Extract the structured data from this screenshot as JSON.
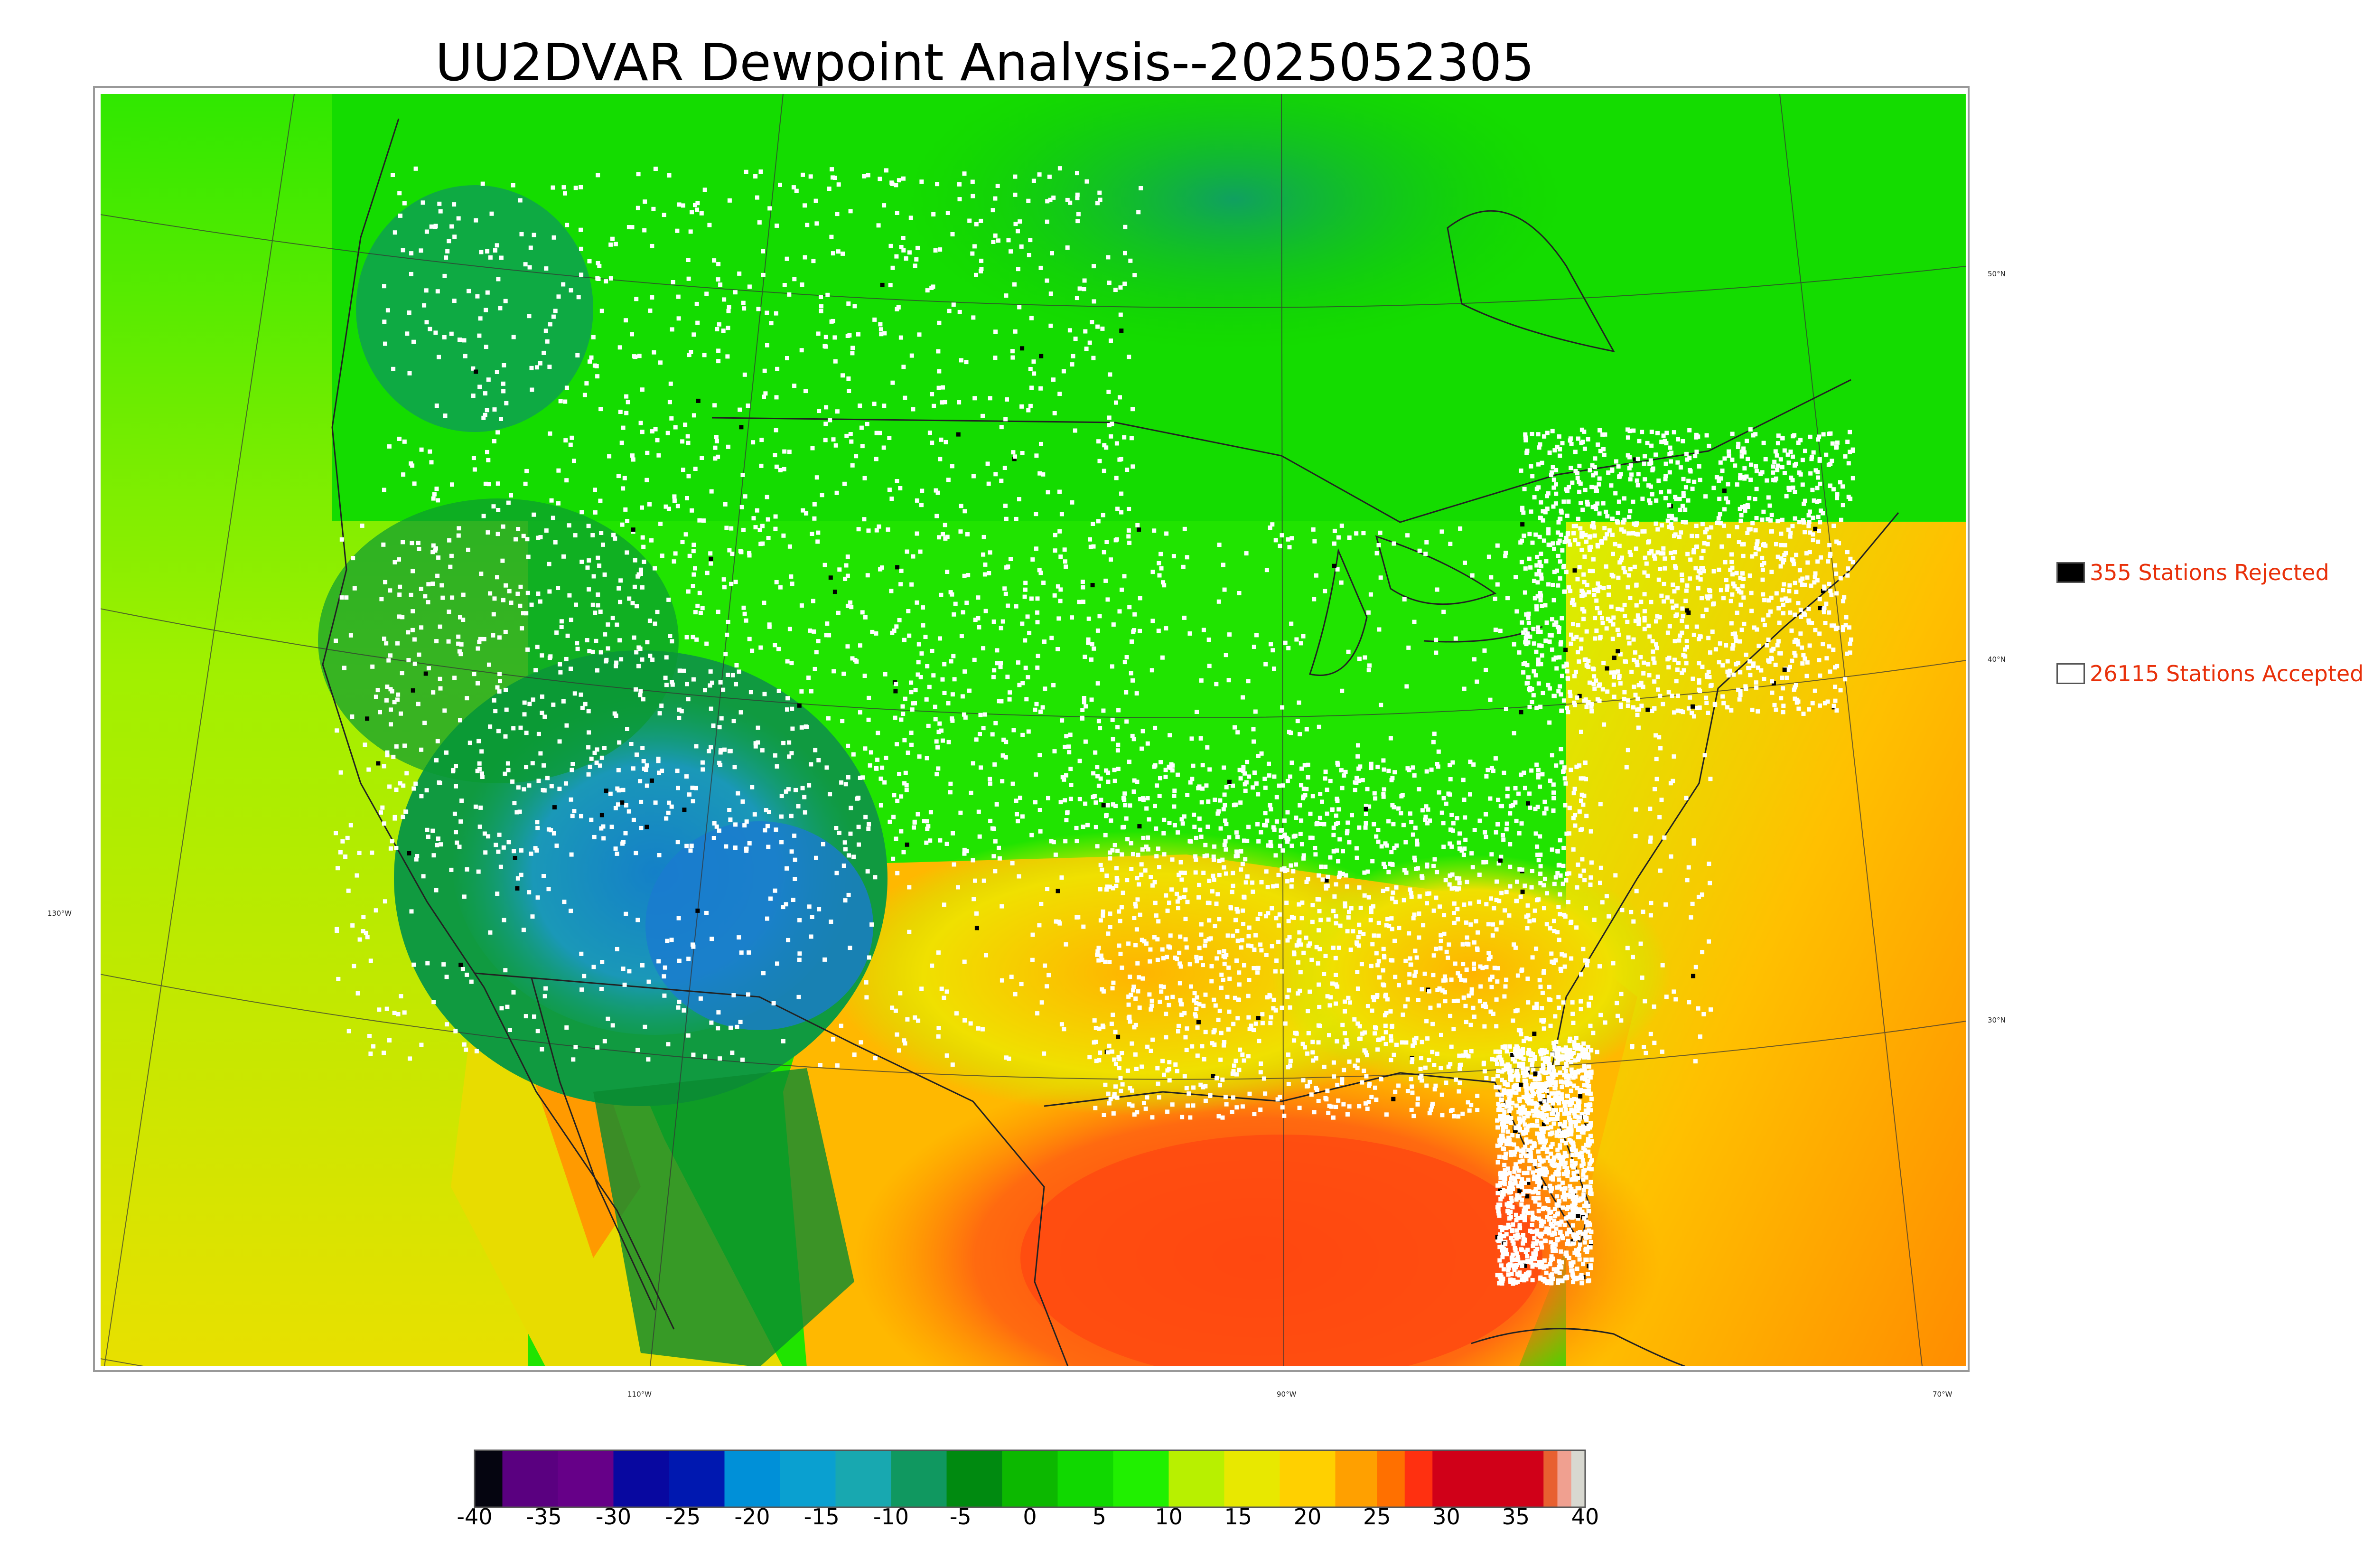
{
  "map": {
    "title": "UU2DVAR Dewpoint Analysis--2025052305",
    "longitude_labels": [
      "130°W",
      "110°W",
      "90°W",
      "70°W"
    ],
    "latitude_labels": [
      "50°N",
      "40°N",
      "30°N"
    ],
    "colors": {
      "water_warm": "#ff8a00",
      "gulf": "#ff4a10",
      "land_moist": "#19d600",
      "land_dry": "#0a9a3a",
      "desert_dry": "#1890c8",
      "pacific": "#c8f000",
      "atlantic": "#ffae00",
      "canada": "#11dd00",
      "station_accepted": "#ffffff",
      "station_rejected": "#000000"
    }
  },
  "legend": {
    "rejected": {
      "label": "355 Stations Rejected",
      "color": "#000000"
    },
    "accepted": {
      "label": "26115 Stations Accepted",
      "color": "#ffffff"
    }
  },
  "colorbar": {
    "ticks": [
      "-40",
      "-35",
      "-30",
      "-25",
      "-20",
      "-15",
      "-10",
      "-5",
      "0",
      "5",
      "10",
      "15",
      "20",
      "25",
      "30",
      "35",
      "40"
    ],
    "range": [
      -40,
      40
    ],
    "segments": [
      {
        "from": -40,
        "to": -38,
        "color": "#050510"
      },
      {
        "from": -38,
        "to": -34,
        "color": "#5a0080"
      },
      {
        "from": -34,
        "to": -30,
        "color": "#660088"
      },
      {
        "from": -30,
        "to": -26,
        "color": "#0808a0"
      },
      {
        "from": -26,
        "to": -22,
        "color": "#0018b0"
      },
      {
        "from": -22,
        "to": -18,
        "color": "#0090d8"
      },
      {
        "from": -18,
        "to": -14,
        "color": "#0aa0d0"
      },
      {
        "from": -14,
        "to": -10,
        "color": "#18a8b0"
      },
      {
        "from": -10,
        "to": -6,
        "color": "#109860"
      },
      {
        "from": -6,
        "to": -2,
        "color": "#008a10"
      },
      {
        "from": -2,
        "to": 2,
        "color": "#0cb800"
      },
      {
        "from": 2,
        "to": 6,
        "color": "#10d800"
      },
      {
        "from": 6,
        "to": 10,
        "color": "#20f000"
      },
      {
        "from": 10,
        "to": 14,
        "color": "#b8f000"
      },
      {
        "from": 14,
        "to": 18,
        "color": "#e8e800"
      },
      {
        "from": 18,
        "to": 22,
        "color": "#ffd000"
      },
      {
        "from": 22,
        "to": 25,
        "color": "#ffa000"
      },
      {
        "from": 25,
        "to": 27,
        "color": "#ff7000"
      },
      {
        "from": 27,
        "to": 29,
        "color": "#ff3010"
      },
      {
        "from": 29,
        "to": 37,
        "color": "#d00018"
      },
      {
        "from": 37,
        "to": 38,
        "color": "#e86030"
      },
      {
        "from": 38,
        "to": 39,
        "color": "#f0a090"
      },
      {
        "from": 39,
        "to": 40,
        "color": "#d8d8d0"
      }
    ]
  }
}
